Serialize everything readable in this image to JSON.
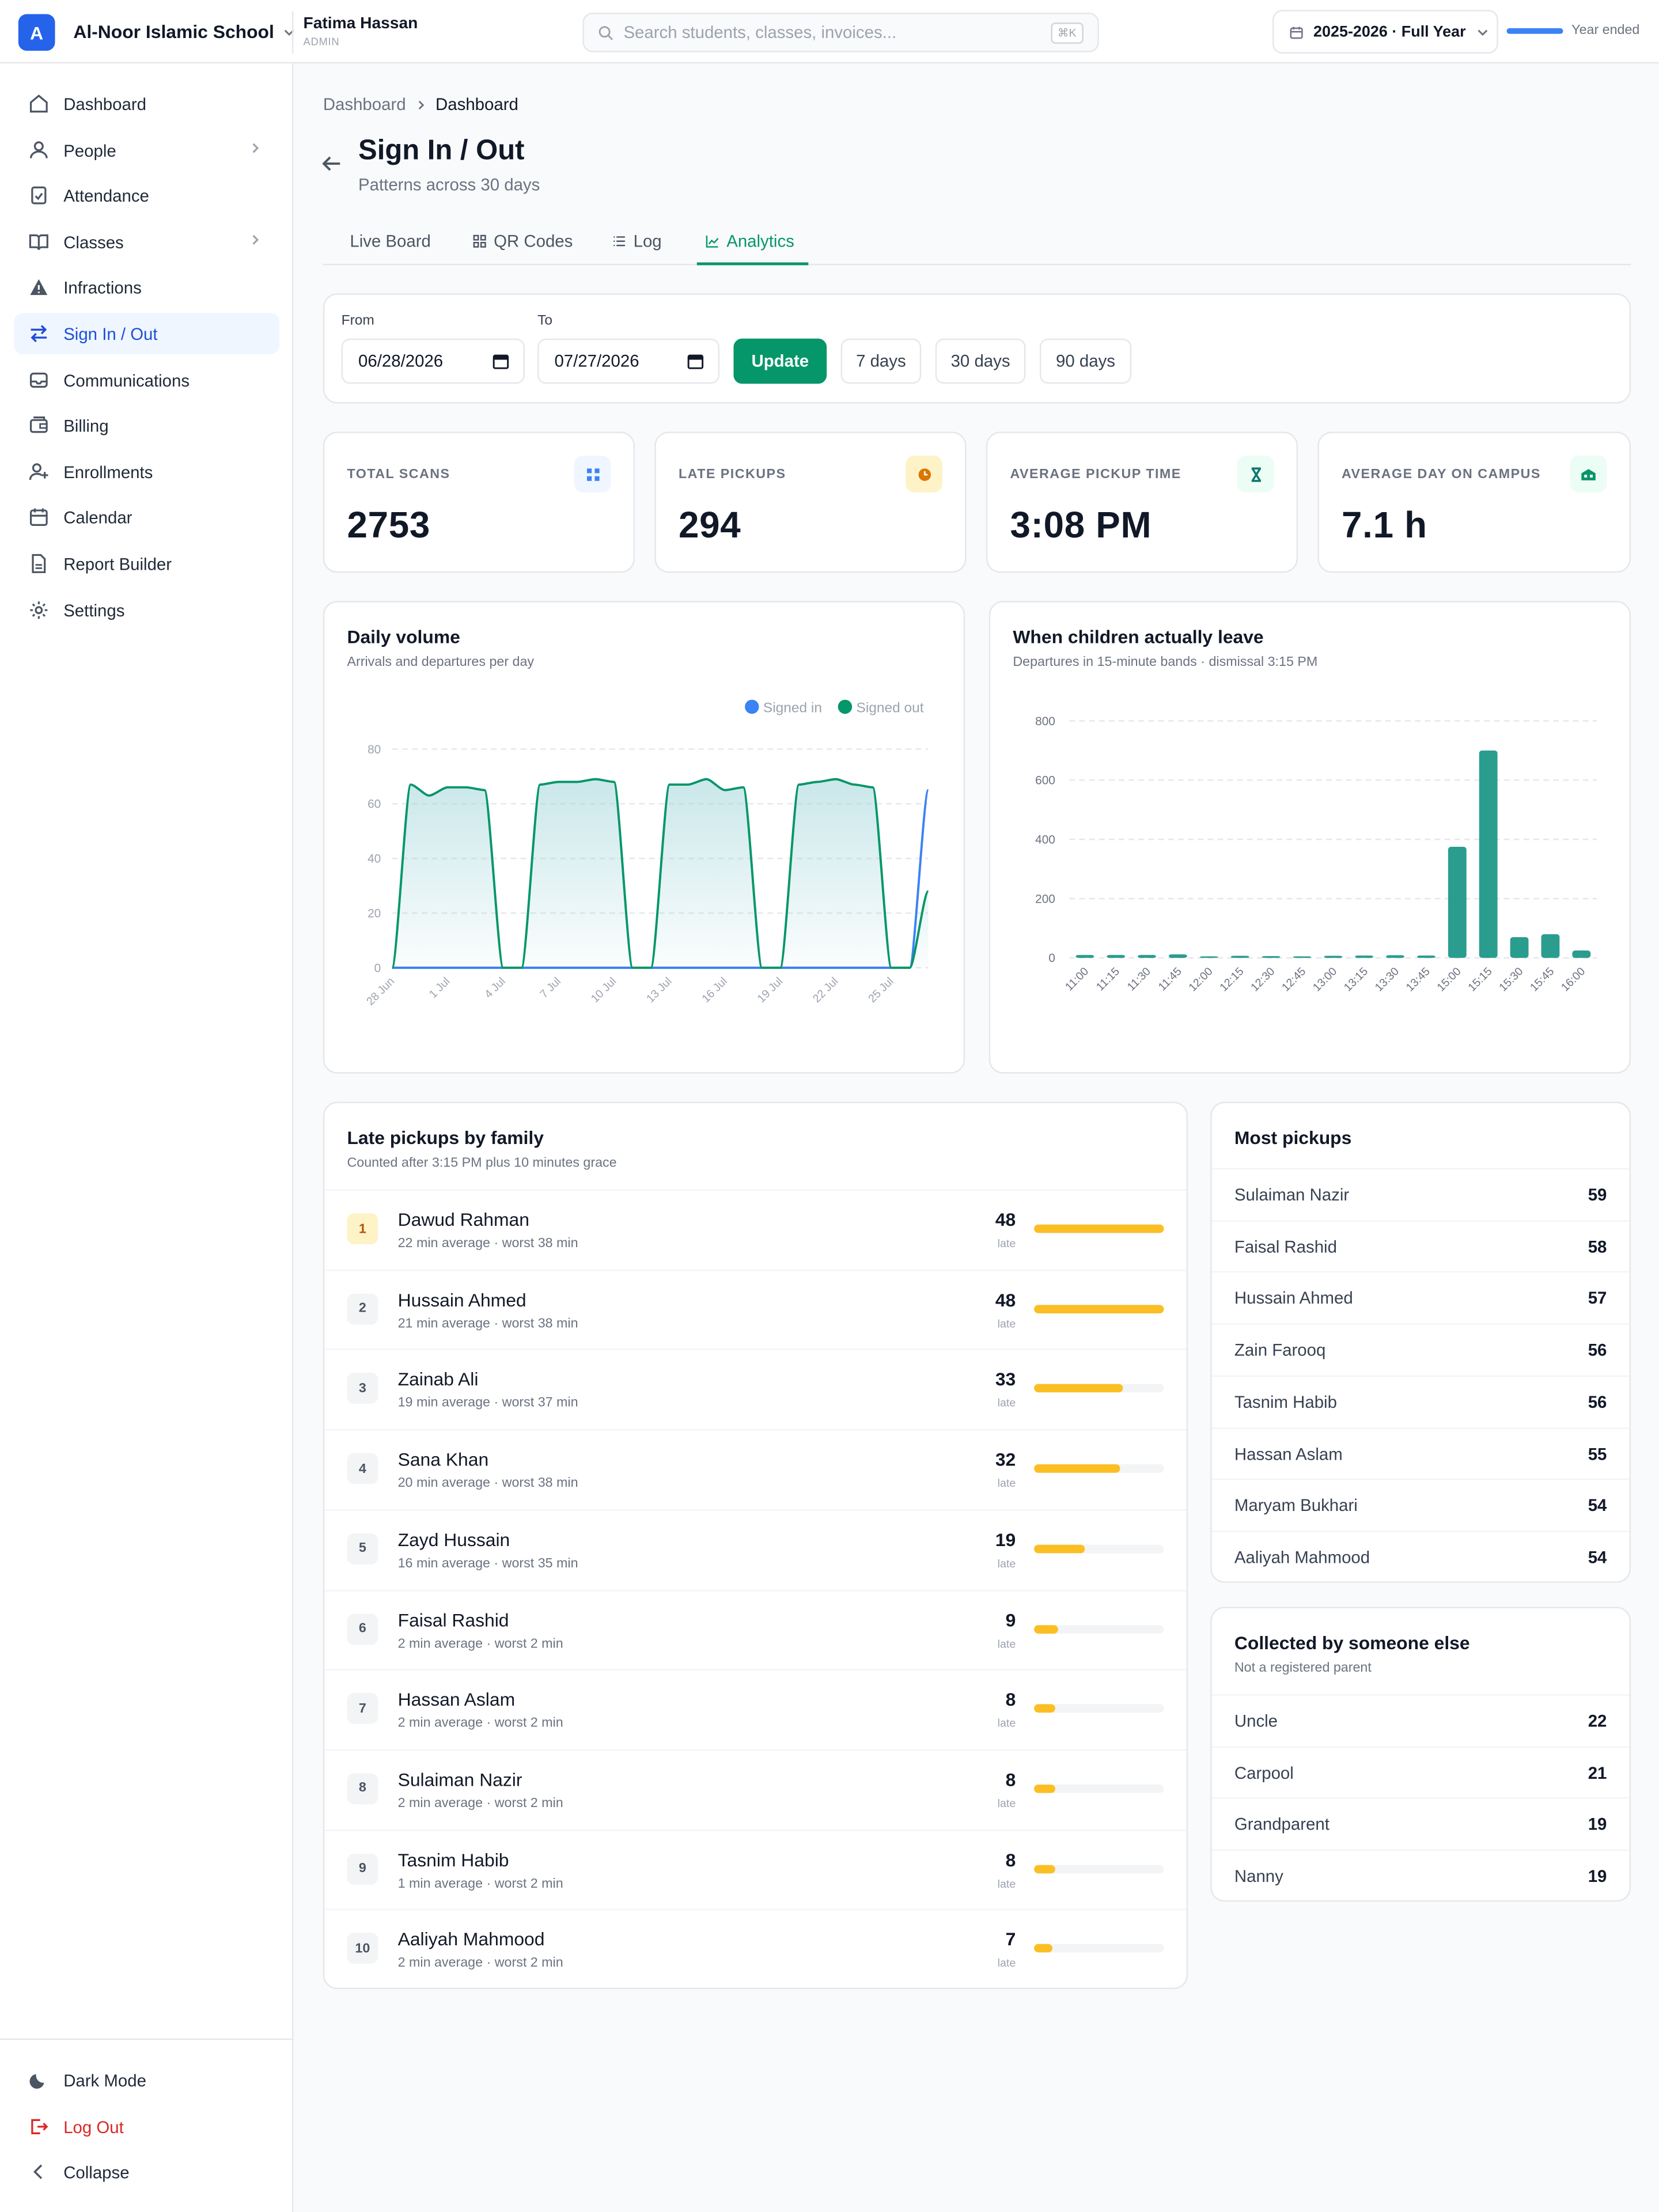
{
  "app": {
    "logo_letter": "A",
    "school": "Al-Noor Islamic School",
    "user_name": "Fatima Hassan",
    "user_role": "ADMIN",
    "search_placeholder": "Search students, classes, invoices...",
    "search_shortcut": "⌘K",
    "year": "2025-2026 · Full Year",
    "year_status": "Year ended",
    "year_progress": 1.0
  },
  "sidebar": {
    "items": [
      {
        "label": "Dashboard",
        "icon": "home-icon"
      },
      {
        "label": "People",
        "icon": "users-icon"
      },
      {
        "label": "Attendance",
        "icon": "clipboard-check-icon"
      },
      {
        "label": "Classes",
        "icon": "book-icon"
      },
      {
        "label": "Infractions",
        "icon": "warning-icon"
      },
      {
        "label": "Sign In / Out",
        "icon": "swap-icon"
      },
      {
        "label": "Communications",
        "icon": "inbox-icon"
      },
      {
        "label": "Billing",
        "icon": "wallet-icon"
      },
      {
        "label": "Enrollments",
        "icon": "user-plus-icon"
      },
      {
        "label": "Calendar",
        "icon": "calendar-icon"
      },
      {
        "label": "Report Builder",
        "icon": "file-icon"
      },
      {
        "label": "Settings",
        "icon": "gear-icon"
      }
    ],
    "dark_mode": "Dark Mode",
    "logout": "Log Out",
    "collapse": "Collapse"
  },
  "page": {
    "breadcrumb": [
      "Dashboard",
      "Dashboard"
    ],
    "title": "Sign In / Out",
    "subtitle": "Patterns across 30 days",
    "tabs": [
      "Live Board",
      "QR Codes",
      "Log",
      "Analytics"
    ]
  },
  "filters": {
    "from_label": "From",
    "from": "06/28/2026",
    "to_label": "To",
    "to": "07/27/2026",
    "update": "Update",
    "presets": [
      "7 days",
      "30 days",
      "90 days"
    ]
  },
  "kpis": [
    {
      "label": "TOTAL SCANS",
      "value": "2753",
      "icon": "qr-icon"
    },
    {
      "label": "LATE PICKUPS",
      "value": "294",
      "icon": "clock-icon"
    },
    {
      "label": "AVERAGE PICKUP TIME",
      "value": "3:08 PM",
      "icon": "hourglass-icon"
    },
    {
      "label": "AVERAGE DAY ON CAMPUS",
      "value": "7.1 h",
      "icon": "building-icon"
    }
  ],
  "chart_data": [
    {
      "type": "area",
      "title": "Daily volume",
      "subtitle": "Arrivals and departures per day",
      "legend": [
        "Signed in",
        "Signed out"
      ],
      "colors": [
        "#3b82f6",
        "#059669"
      ],
      "x": [
        "28 Jun",
        "29 Jun",
        "30 Jun",
        "1 Jul",
        "2 Jul",
        "3 Jul",
        "4 Jul",
        "5 Jul",
        "6 Jul",
        "7 Jul",
        "8 Jul",
        "9 Jul",
        "10 Jul",
        "11 Jul",
        "12 Jul",
        "13 Jul",
        "14 Jul",
        "15 Jul",
        "16 Jul",
        "17 Jul",
        "18 Jul",
        "19 Jul",
        "20 Jul",
        "21 Jul",
        "22 Jul",
        "23 Jul",
        "24 Jul",
        "25 Jul",
        "26 Jul",
        "27 Jul"
      ],
      "tick_labels": [
        "28 Jun",
        "1 Jul",
        "4 Jul",
        "7 Jul",
        "10 Jul",
        "13 Jul",
        "16 Jul",
        "19 Jul",
        "22 Jul",
        "25 Jul"
      ],
      "series": [
        {
          "name": "Signed in",
          "values": [
            0,
            0,
            0,
            0,
            0,
            0,
            0,
            0,
            0,
            0,
            0,
            0,
            0,
            0,
            0,
            0,
            0,
            0,
            0,
            0,
            0,
            0,
            0,
            0,
            0,
            0,
            0,
            0,
            0,
            65
          ]
        },
        {
          "name": "Signed out",
          "values": [
            0,
            67,
            63,
            66,
            66,
            65,
            0,
            0,
            67,
            68,
            68,
            69,
            68,
            0,
            0,
            67,
            67,
            69,
            65,
            66,
            0,
            0,
            67,
            68,
            69,
            67,
            66,
            0,
            0,
            28
          ]
        }
      ],
      "ylim": [
        0,
        80
      ],
      "yticks": [
        0,
        20,
        40,
        60,
        80
      ]
    },
    {
      "type": "bar",
      "title": "When children actually leave",
      "subtitle": "Departures in 15-minute bands · dismissal 3:15 PM",
      "categories": [
        "11:00",
        "11:15",
        "11:30",
        "11:45",
        "12:00",
        "12:15",
        "12:30",
        "12:45",
        "13:00",
        "13:15",
        "13:30",
        "13:45",
        "15:00",
        "15:15",
        "15:30",
        "15:45",
        "16:00"
      ],
      "values": [
        10,
        10,
        10,
        12,
        5,
        7,
        6,
        5,
        7,
        8,
        9,
        8,
        375,
        700,
        70,
        80,
        25
      ],
      "ylim": [
        0,
        800
      ],
      "yticks": [
        0,
        200,
        400,
        600,
        800
      ],
      "color": "#2a9d8f"
    }
  ],
  "late_families": {
    "title": "Late pickups by family",
    "subtitle": "Counted after 3:15 PM plus 10 minutes grace",
    "unit": "late",
    "max": 48,
    "rows": [
      {
        "rank": "1",
        "name": "Dawud Rahman",
        "detail": "22 min average · worst 38 min",
        "count": 48
      },
      {
        "rank": "2",
        "name": "Hussain Ahmed",
        "detail": "21 min average · worst 38 min",
        "count": 48
      },
      {
        "rank": "3",
        "name": "Zainab Ali",
        "detail": "19 min average · worst 37 min",
        "count": 33
      },
      {
        "rank": "4",
        "name": "Sana Khan",
        "detail": "20 min average · worst 38 min",
        "count": 32
      },
      {
        "rank": "5",
        "name": "Zayd Hussain",
        "detail": "16 min average · worst 35 min",
        "count": 19
      },
      {
        "rank": "6",
        "name": "Faisal Rashid",
        "detail": "2 min average · worst 2 min",
        "count": 9
      },
      {
        "rank": "7",
        "name": "Hassan Aslam",
        "detail": "2 min average · worst 2 min",
        "count": 8
      },
      {
        "rank": "8",
        "name": "Sulaiman Nazir",
        "detail": "2 min average · worst 2 min",
        "count": 8
      },
      {
        "rank": "9",
        "name": "Tasnim Habib",
        "detail": "1 min average · worst 2 min",
        "count": 8
      },
      {
        "rank": "10",
        "name": "Aaliyah Mahmood",
        "detail": "2 min average · worst 2 min",
        "count": 7
      }
    ]
  },
  "most_pickups": {
    "title": "Most pickups",
    "rows": [
      {
        "name": "Sulaiman Nazir",
        "value": "59"
      },
      {
        "name": "Faisal Rashid",
        "value": "58"
      },
      {
        "name": "Hussain Ahmed",
        "value": "57"
      },
      {
        "name": "Zain Farooq",
        "value": "56"
      },
      {
        "name": "Tasnim Habib",
        "value": "56"
      },
      {
        "name": "Hassan Aslam",
        "value": "55"
      },
      {
        "name": "Maryam Bukhari",
        "value": "54"
      },
      {
        "name": "Aaliyah Mahmood",
        "value": "54"
      }
    ]
  },
  "collected_by_other": {
    "title": "Collected by someone else",
    "subtitle": "Not a registered parent",
    "rows": [
      {
        "name": "Uncle",
        "value": "22"
      },
      {
        "name": "Carpool",
        "value": "21"
      },
      {
        "name": "Grandparent",
        "value": "19"
      },
      {
        "name": "Nanny",
        "value": "19"
      }
    ]
  }
}
